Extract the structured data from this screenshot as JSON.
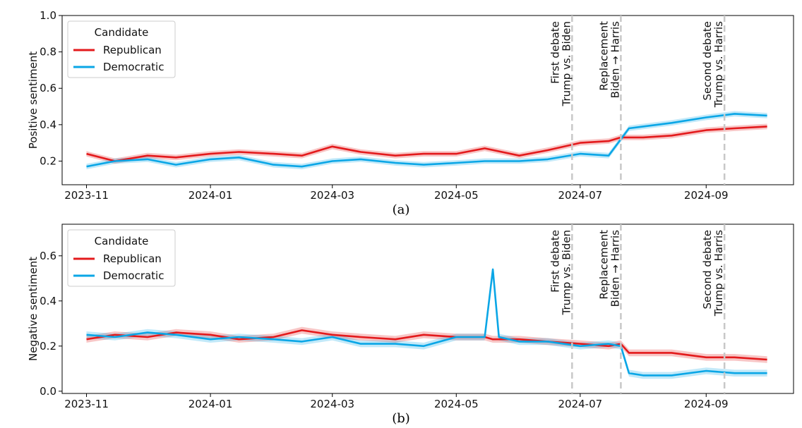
{
  "figure": {
    "colors": {
      "republican": "#e31a1c",
      "democratic": "#0aa6e6",
      "event_line": "#c8c8c8",
      "band_alpha": 0.25
    }
  },
  "chart_data": [
    {
      "type": "line",
      "panel_caption": "(a)",
      "ylabel": "Positive sentiment",
      "xlim": [
        "2023-10-20",
        "2024-10-14"
      ],
      "ylim": [
        0.07,
        1.0
      ],
      "xticks": [
        "2023-11",
        "2024-01",
        "2024-03",
        "2024-05",
        "2024-07",
        "2024-09"
      ],
      "yticks": [
        "0.2",
        "0.4",
        "0.6",
        "0.8",
        "1.0"
      ],
      "ytick_values": [
        0.2,
        0.4,
        0.6,
        0.8,
        1.0
      ],
      "legend": {
        "title": "Candidate",
        "placement": "top-left",
        "entries": [
          "Republican",
          "Democratic"
        ]
      },
      "events": [
        {
          "date": "2024-06-27",
          "line1": "First debate",
          "line2": "Trump vs. Biden"
        },
        {
          "date": "2024-07-21",
          "line1": "Replacement",
          "line2": "Biden → Harris"
        },
        {
          "date": "2024-09-10",
          "line1": "Second debate",
          "line2": "Trump vs. Harris"
        }
      ],
      "x": [
        "2023-11-01",
        "2023-11-15",
        "2023-12-01",
        "2023-12-15",
        "2024-01-01",
        "2024-01-15",
        "2024-02-01",
        "2024-02-15",
        "2024-03-01",
        "2024-03-15",
        "2024-04-01",
        "2024-04-15",
        "2024-05-01",
        "2024-05-15",
        "2024-06-01",
        "2024-06-15",
        "2024-07-01",
        "2024-07-15",
        "2024-07-21",
        "2024-07-25",
        "2024-08-01",
        "2024-08-15",
        "2024-09-01",
        "2024-09-15",
        "2024-10-01"
      ],
      "series": [
        {
          "name": "Republican",
          "values": [
            0.24,
            0.2,
            0.23,
            0.22,
            0.24,
            0.25,
            0.24,
            0.23,
            0.28,
            0.25,
            0.23,
            0.24,
            0.24,
            0.27,
            0.23,
            0.26,
            0.3,
            0.31,
            0.33,
            0.33,
            0.33,
            0.34,
            0.37,
            0.38,
            0.39
          ]
        },
        {
          "name": "Democratic",
          "values": [
            0.17,
            0.2,
            0.21,
            0.18,
            0.21,
            0.22,
            0.18,
            0.17,
            0.2,
            0.21,
            0.19,
            0.18,
            0.19,
            0.2,
            0.2,
            0.21,
            0.24,
            0.23,
            0.32,
            0.38,
            0.39,
            0.41,
            0.44,
            0.46,
            0.45
          ]
        }
      ]
    },
    {
      "type": "line",
      "panel_caption": "(b)",
      "ylabel": "Negative sentiment",
      "xlim": [
        "2023-10-20",
        "2024-10-14"
      ],
      "ylim": [
        -0.01,
        0.74
      ],
      "xticks": [
        "2023-11",
        "2024-01",
        "2024-03",
        "2024-05",
        "2024-07",
        "2024-09"
      ],
      "yticks": [
        "0.0",
        "0.2",
        "0.4",
        "0.6"
      ],
      "ytick_values": [
        0.0,
        0.2,
        0.4,
        0.6
      ],
      "legend": {
        "title": "Candidate",
        "placement": "top-left",
        "entries": [
          "Republican",
          "Democratic"
        ]
      },
      "events": [
        {
          "date": "2024-06-27",
          "line1": "First debate",
          "line2": "Trump vs. Biden"
        },
        {
          "date": "2024-07-21",
          "line1": "Replacement",
          "line2": "Biden → Harris"
        },
        {
          "date": "2024-09-10",
          "line1": "Second debate",
          "line2": "Trump vs. Harris"
        }
      ],
      "x": [
        "2023-11-01",
        "2023-11-15",
        "2023-12-01",
        "2023-12-15",
        "2024-01-01",
        "2024-01-15",
        "2024-02-01",
        "2024-02-15",
        "2024-03-01",
        "2024-03-15",
        "2024-04-01",
        "2024-04-15",
        "2024-05-01",
        "2024-05-15",
        "2024-05-19",
        "2024-05-22",
        "2024-06-01",
        "2024-06-15",
        "2024-07-01",
        "2024-07-15",
        "2024-07-21",
        "2024-07-25",
        "2024-08-01",
        "2024-08-15",
        "2024-09-01",
        "2024-09-15",
        "2024-10-01"
      ],
      "series": [
        {
          "name": "Republican",
          "values": [
            0.23,
            0.25,
            0.24,
            0.26,
            0.25,
            0.23,
            0.24,
            0.27,
            0.25,
            0.24,
            0.23,
            0.25,
            0.24,
            0.24,
            0.23,
            0.23,
            0.23,
            0.22,
            0.21,
            0.2,
            0.21,
            0.17,
            0.17,
            0.17,
            0.15,
            0.15,
            0.14
          ]
        },
        {
          "name": "Democratic",
          "values": [
            0.25,
            0.24,
            0.26,
            0.25,
            0.23,
            0.24,
            0.23,
            0.22,
            0.24,
            0.21,
            0.21,
            0.2,
            0.24,
            0.24,
            0.54,
            0.24,
            0.22,
            0.22,
            0.2,
            0.21,
            0.2,
            0.08,
            0.07,
            0.07,
            0.09,
            0.08,
            0.08
          ]
        }
      ]
    }
  ]
}
